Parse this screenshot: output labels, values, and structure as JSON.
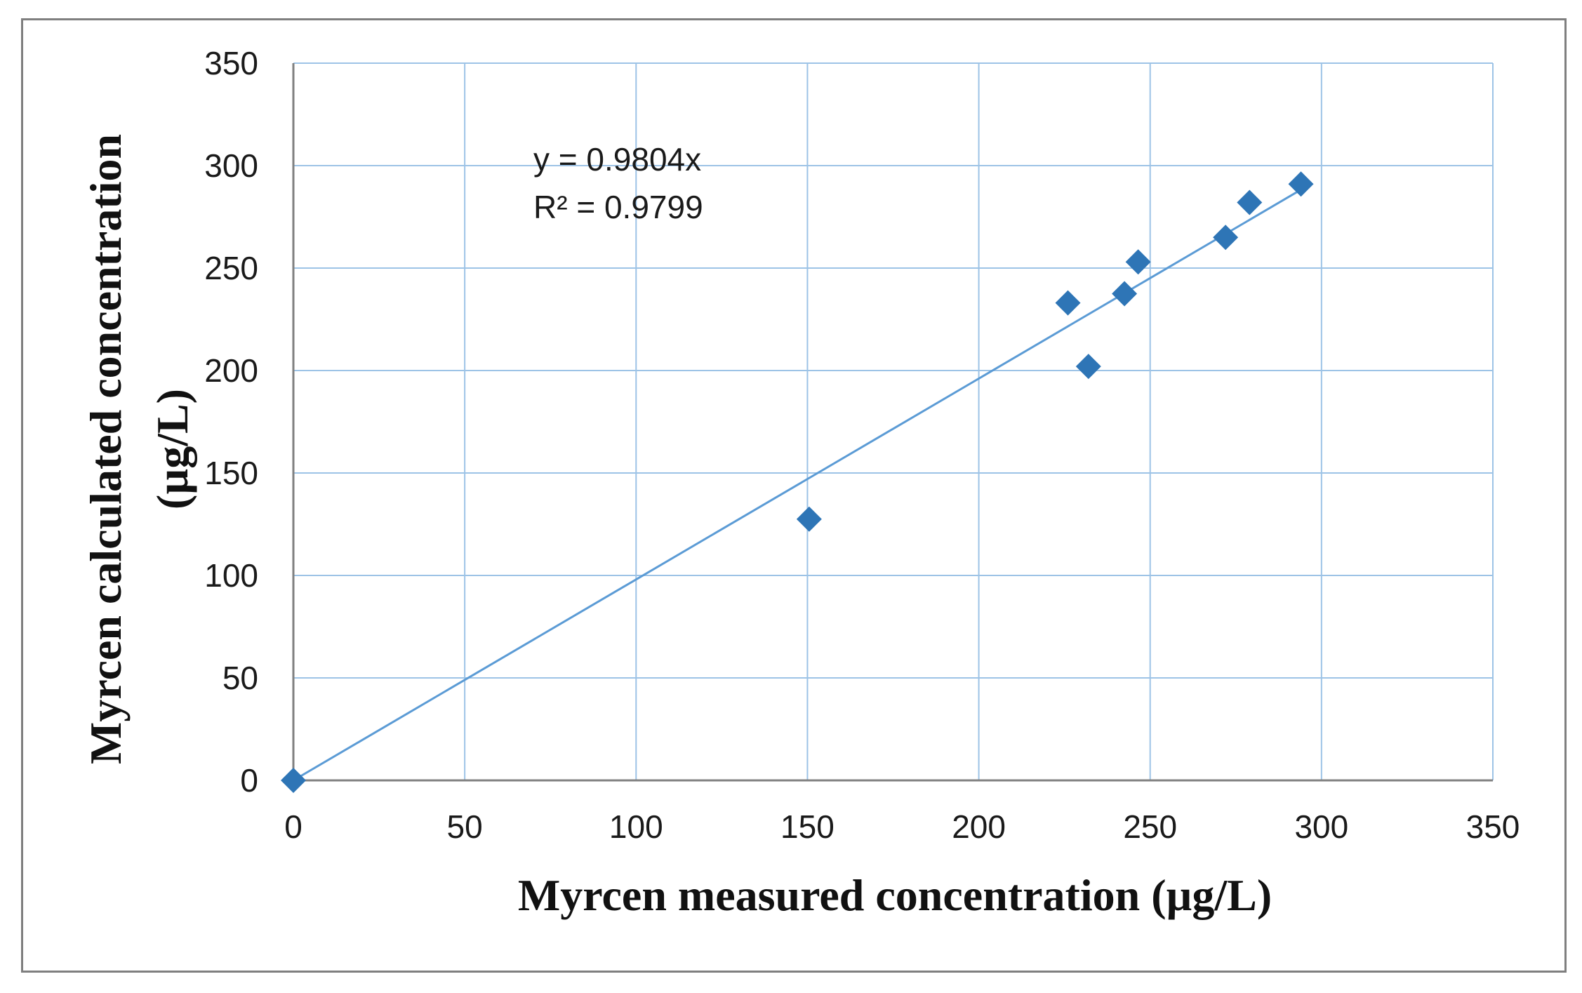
{
  "chart_data": {
    "type": "scatter",
    "title": "",
    "xlabel": "Myrcen measured concentration  (µg/L)",
    "ylabel_lines": [
      "Myrcen calculated  concentration",
      "(µg/L)"
    ],
    "xlim": [
      0,
      350
    ],
    "ylim": [
      0,
      350
    ],
    "xticks": [
      0,
      50,
      100,
      150,
      200,
      250,
      300,
      350
    ],
    "yticks": [
      0,
      50,
      100,
      150,
      200,
      250,
      300,
      350
    ],
    "grid": true,
    "series": [
      {
        "name": "Myrcen",
        "marker": "diamond",
        "color": "#2e75b6",
        "points": [
          {
            "x": 0,
            "y": 0
          },
          {
            "x": 150.5,
            "y": 127.5
          },
          {
            "x": 226,
            "y": 233
          },
          {
            "x": 232,
            "y": 202
          },
          {
            "x": 242.5,
            "y": 237.5
          },
          {
            "x": 246.5,
            "y": 253
          },
          {
            "x": 272,
            "y": 265
          },
          {
            "x": 279,
            "y": 282
          },
          {
            "x": 294,
            "y": 291
          }
        ]
      }
    ],
    "trendline": {
      "type": "linear",
      "slope": 0.9804,
      "x_range": [
        0,
        294
      ],
      "color": "#5b9bd5",
      "equation_text": "y = 0.9804x",
      "r2_text": "R² = 0.9799"
    },
    "colors": {
      "grid": "#9dc3e6",
      "axis": "#808080",
      "frame": "#7f7f7f"
    }
  }
}
